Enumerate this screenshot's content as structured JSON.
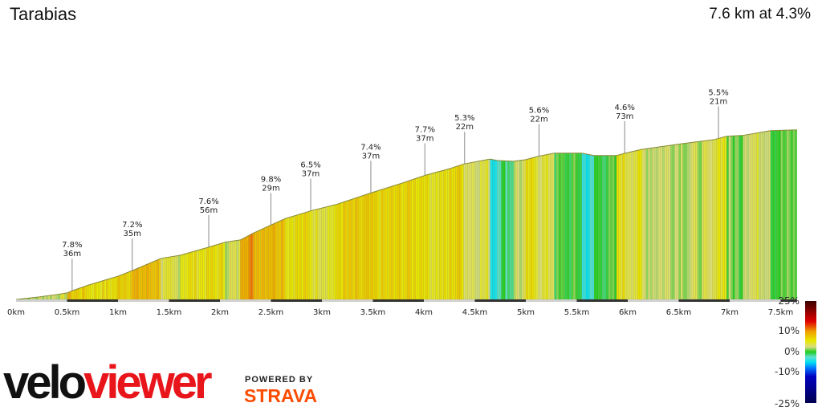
{
  "header": {
    "title": "Tarabias",
    "summary": "7.6 km at 4.3%"
  },
  "chart_data": {
    "type": "area",
    "xlabel": "",
    "ylabel": "",
    "x_unit": "km",
    "xlim": [
      0,
      7.66
    ],
    "x_ticks": [
      "0km",
      "0.5km",
      "1km",
      "1.5km",
      "2km",
      "2.5km",
      "3km",
      "3.5km",
      "4km",
      "4.5km",
      "5km",
      "5.5km",
      "6km",
      "6.5km",
      "7km",
      "7.5km"
    ],
    "segments_km_gradient": [
      [
        0,
        0.22,
        2.1
      ],
      [
        0.22,
        0.39,
        2.7
      ],
      [
        0.39,
        0.5,
        3.0
      ],
      [
        0.5,
        0.55,
        8.4
      ],
      [
        0.55,
        0.71,
        6.9
      ],
      [
        0.71,
        1.0,
        5.9
      ],
      [
        1.0,
        1.14,
        7.7
      ],
      [
        1.14,
        1.42,
        8.4
      ],
      [
        1.42,
        1.61,
        3.2
      ],
      [
        1.61,
        1.89,
        5.6
      ],
      [
        1.89,
        2.05,
        5.9
      ],
      [
        2.05,
        2.2,
        3.0
      ],
      [
        2.2,
        2.32,
        10.5
      ],
      [
        2.32,
        2.5,
        9.0
      ],
      [
        2.5,
        2.64,
        8.8
      ],
      [
        2.64,
        2.9,
        6.0
      ],
      [
        2.9,
        3.15,
        4.9
      ],
      [
        3.15,
        3.48,
        6.6
      ],
      [
        3.48,
        3.78,
        6.2
      ],
      [
        3.78,
        4.02,
        6.6
      ],
      [
        4.02,
        4.25,
        5.3
      ],
      [
        4.25,
        4.39,
        6.6
      ],
      [
        4.39,
        4.65,
        3.7
      ],
      [
        4.65,
        4.72,
        -3.9
      ],
      [
        4.72,
        4.88,
        -1.0
      ],
      [
        4.88,
        5.0,
        2.6
      ],
      [
        5.0,
        5.12,
        5.3
      ],
      [
        5.12,
        5.28,
        3.9
      ],
      [
        5.28,
        5.55,
        0
      ],
      [
        5.55,
        5.67,
        -3.9
      ],
      [
        5.67,
        5.89,
        0
      ],
      [
        5.89,
        5.97,
        5.4
      ],
      [
        5.97,
        6.14,
        4.5
      ],
      [
        6.14,
        6.54,
        2.8
      ],
      [
        6.54,
        6.85,
        2.5
      ],
      [
        6.85,
        6.97,
        5.3
      ],
      [
        6.97,
        7.13,
        1.0
      ],
      [
        7.13,
        7.4,
        3.4
      ],
      [
        7.4,
        7.66,
        0.6
      ]
    ],
    "annotations": [
      {
        "km": 0.55,
        "gradient": "7.8%",
        "length": "36m"
      },
      {
        "km": 1.14,
        "gradient": "7.2%",
        "length": "35m"
      },
      {
        "km": 1.89,
        "gradient": "7.6%",
        "length": "56m"
      },
      {
        "km": 2.5,
        "gradient": "9.8%",
        "length": "29m"
      },
      {
        "km": 2.89,
        "gradient": "6.5%",
        "length": "37m"
      },
      {
        "km": 3.48,
        "gradient": "7.4%",
        "length": "37m"
      },
      {
        "km": 4.01,
        "gradient": "7.7%",
        "length": "37m"
      },
      {
        "km": 4.4,
        "gradient": "5.3%",
        "length": "22m"
      },
      {
        "km": 5.13,
        "gradient": "5.6%",
        "length": "22m"
      },
      {
        "km": 5.97,
        "gradient": "4.6%",
        "length": "73m"
      },
      {
        "km": 6.89,
        "gradient": "5.5%",
        "length": "21m"
      }
    ],
    "legend": {
      "type": "colorbar",
      "placement": "bottom-right",
      "labels": [
        {
          "value": 25,
          "text": "25%"
        },
        {
          "value": 10,
          "text": "10%"
        },
        {
          "value": 0,
          "text": "0%"
        },
        {
          "value": -10,
          "text": "-10%"
        },
        {
          "value": -25,
          "text": "-25%"
        }
      ],
      "colors": [
        "#3a0000",
        "#e00000",
        "#f0a000",
        "#e8e800",
        "#d8dc80",
        "#20cc20",
        "#60e0d0",
        "#00e0f0",
        "#0070ff",
        "#0000c0",
        "#000050"
      ]
    }
  },
  "branding": {
    "logo_text_1": "velo",
    "logo_text_2": "viewer",
    "powered_by": "POWERED BY",
    "strava": "STRAVA",
    "strava_color": "#fc4c02",
    "logo_red": "#e8151b"
  }
}
